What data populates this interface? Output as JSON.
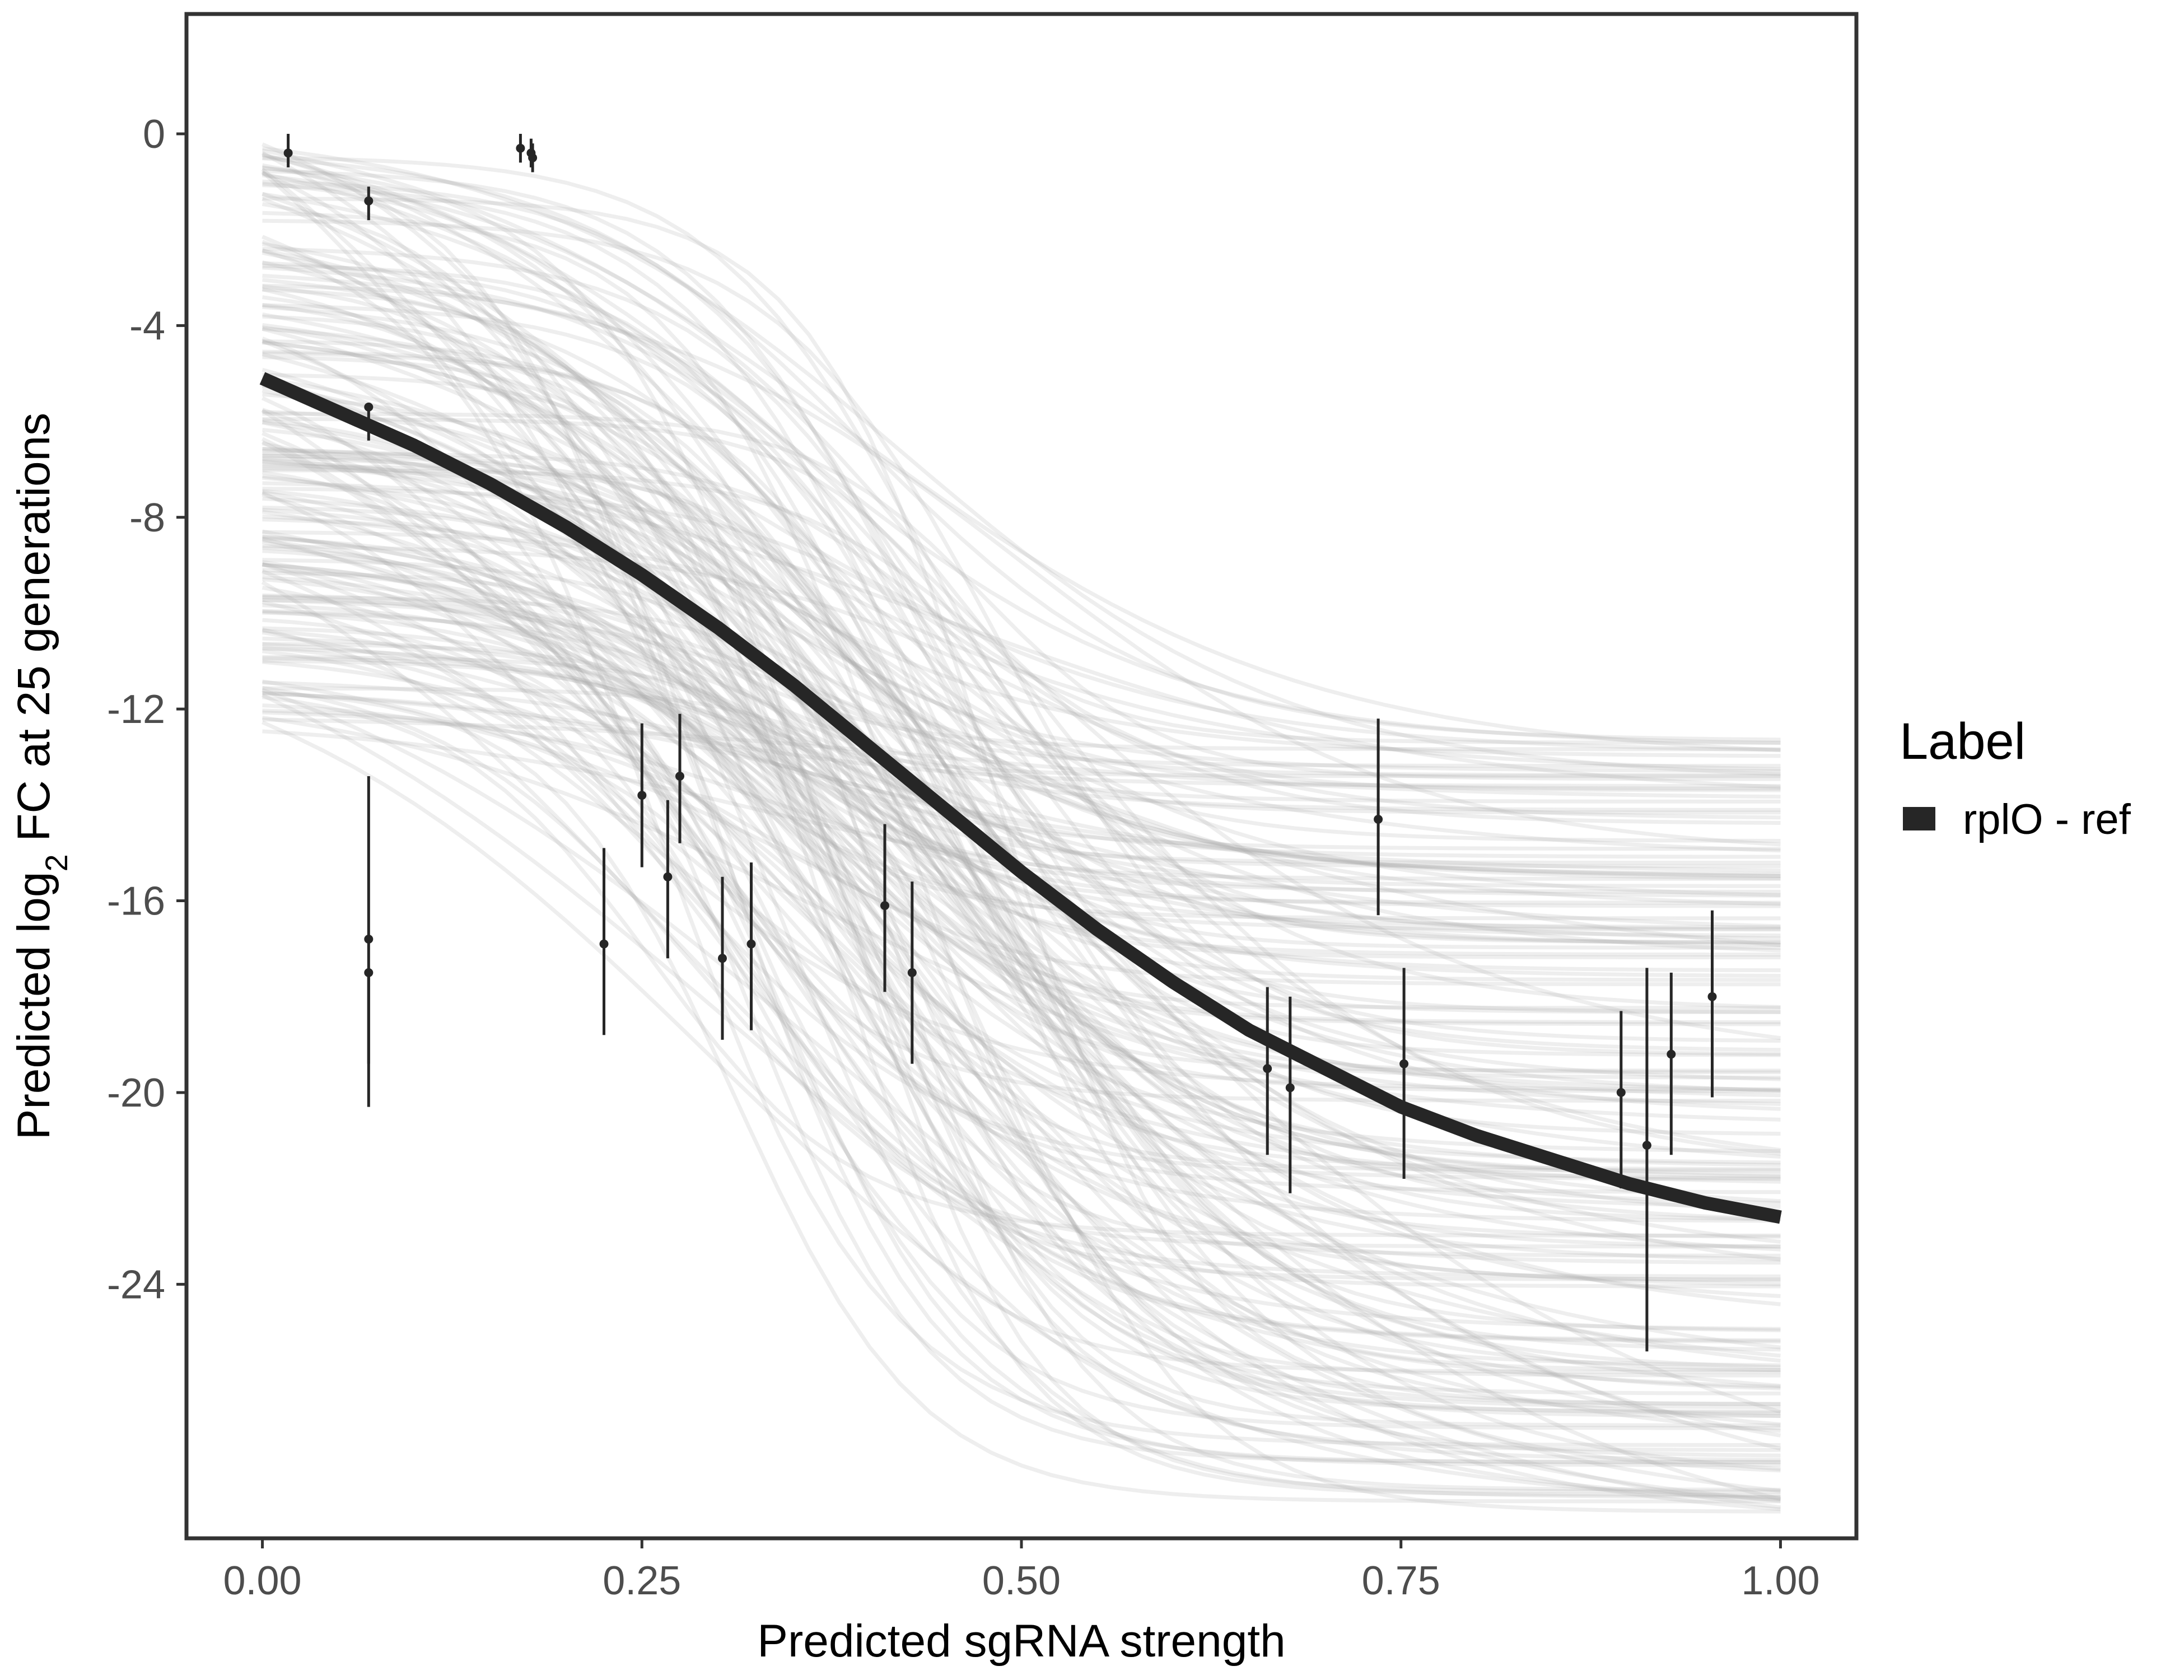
{
  "chart_data": {
    "type": "line",
    "title": "",
    "xlabel": "Predicted sgRNA strength",
    "ylabel_parts": {
      "before": "Predicted  log",
      "subscript": "2",
      "after": " FC at 25 generations"
    },
    "xlim": [
      -0.05,
      1.05
    ],
    "ylim": [
      -29.3,
      2.5
    ],
    "x_ticks": [
      0,
      0.25,
      0.5,
      0.75,
      1
    ],
    "x_tick_labels": [
      "0.00",
      "0.25",
      "0.50",
      "0.75",
      "1.00"
    ],
    "y_ticks": [
      0,
      -4,
      -8,
      -12,
      -16,
      -20,
      -24
    ],
    "y_tick_labels": [
      "0",
      "-4",
      "-8",
      "-12",
      "-16",
      "-20",
      "-24"
    ],
    "legend": {
      "title": "Label",
      "position": "right",
      "entries": [
        {
          "label": "rplO - ref",
          "color": "#262626"
        }
      ]
    },
    "colors": {
      "fit_line": "#262626",
      "posterior_draws": "#a8a8a8",
      "points": "#262626",
      "frame": "#333333"
    },
    "series": [
      {
        "name": "rplO - ref",
        "x": [
          0,
          0.05,
          0.1,
          0.15,
          0.2,
          0.25,
          0.3,
          0.35,
          0.4,
          0.45,
          0.5,
          0.55,
          0.6,
          0.65,
          0.7,
          0.75,
          0.8,
          0.85,
          0.9,
          0.95,
          1
        ],
        "y": [
          -5.1,
          -5.8,
          -6.5,
          -7.3,
          -8.2,
          -9.2,
          -10.3,
          -11.5,
          -12.8,
          -14.1,
          -15.4,
          -16.6,
          -17.7,
          -18.7,
          -19.5,
          -20.3,
          -20.9,
          -21.4,
          -21.9,
          -22.3,
          -22.6
        ]
      }
    ],
    "posterior_draws": {
      "count": 180,
      "x_range": [
        0,
        1
      ],
      "start_range": [
        -12.5,
        -0.2
      ],
      "end_range": [
        -28.8,
        -12.6
      ],
      "color": "#a8a8a8"
    },
    "observations": [
      {
        "x": 0.017,
        "y": -0.4,
        "ymin": -0.7,
        "ymax": 0.0
      },
      {
        "x": 0.07,
        "y": -1.4,
        "ymin": -1.8,
        "ymax": -1.1
      },
      {
        "x": 0.07,
        "y": -5.7,
        "ymin": -6.4,
        "ymax": -5.7
      },
      {
        "x": 0.07,
        "y": -16.8,
        "ymin": -19.4,
        "ymax": -13.4
      },
      {
        "x": 0.07,
        "y": -17.5,
        "ymin": -20.3,
        "ymax": -17.5
      },
      {
        "x": 0.17,
        "y": -0.3,
        "ymin": -0.6,
        "ymax": 0.0
      },
      {
        "x": 0.177,
        "y": -0.4,
        "ymin": -0.7,
        "ymax": -0.1
      },
      {
        "x": 0.178,
        "y": -0.5,
        "ymin": -0.8,
        "ymax": -0.2
      },
      {
        "x": 0.225,
        "y": -16.9,
        "ymin": -18.8,
        "ymax": -14.9
      },
      {
        "x": 0.25,
        "y": -13.8,
        "ymin": -15.3,
        "ymax": -12.3
      },
      {
        "x": 0.267,
        "y": -15.5,
        "ymin": -17.2,
        "ymax": -13.9
      },
      {
        "x": 0.275,
        "y": -13.4,
        "ymin": -14.8,
        "ymax": -12.1
      },
      {
        "x": 0.303,
        "y": -17.2,
        "ymin": -18.9,
        "ymax": -15.5
      },
      {
        "x": 0.322,
        "y": -16.9,
        "ymin": -18.7,
        "ymax": -15.2
      },
      {
        "x": 0.41,
        "y": -16.1,
        "ymin": -17.9,
        "ymax": -14.4
      },
      {
        "x": 0.428,
        "y": -17.5,
        "ymin": -19.4,
        "ymax": -15.6
      },
      {
        "x": 0.662,
        "y": -19.5,
        "ymin": -21.3,
        "ymax": -17.8
      },
      {
        "x": 0.677,
        "y": -19.9,
        "ymin": -22.1,
        "ymax": -18.0
      },
      {
        "x": 0.735,
        "y": -14.3,
        "ymin": -16.3,
        "ymax": -12.2
      },
      {
        "x": 0.752,
        "y": -19.4,
        "ymin": -21.8,
        "ymax": -17.4
      },
      {
        "x": 0.895,
        "y": -20.0,
        "ymin": -22.0,
        "ymax": -18.3
      },
      {
        "x": 0.912,
        "y": -21.1,
        "ymin": -25.4,
        "ymax": -17.4
      },
      {
        "x": 0.928,
        "y": -19.2,
        "ymin": -21.3,
        "ymax": -17.5
      },
      {
        "x": 0.955,
        "y": -18.0,
        "ymin": -20.1,
        "ymax": -16.2
      }
    ]
  }
}
